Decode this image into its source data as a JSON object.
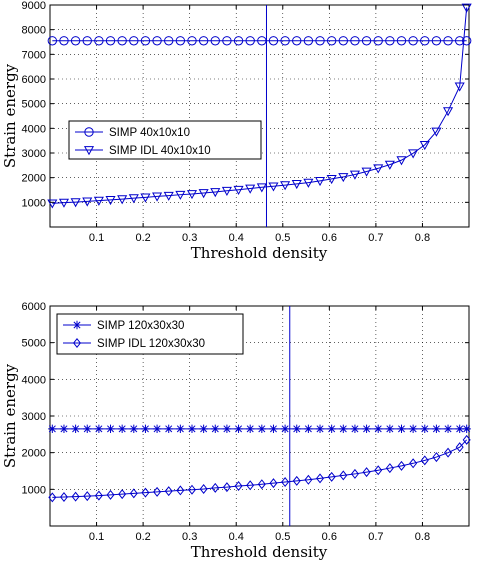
{
  "colors": {
    "series": "#0000cc",
    "grid": "#000000",
    "axes": "#000000"
  },
  "chart_data": [
    {
      "type": "line",
      "xlabel": "Threshold density",
      "ylabel": "Strain energy",
      "xlim": [
        0,
        0.9
      ],
      "ylim": [
        0,
        9000
      ],
      "xticks": [
        "0.1",
        "0.2",
        "0.3",
        "0.4",
        "0.5",
        "0.6",
        "0.7",
        "0.8"
      ],
      "yticks": [
        "1000",
        "2000",
        "3000",
        "4000",
        "5000",
        "6000",
        "7000",
        "8000",
        "9000"
      ],
      "grid": true,
      "legend_position": "middle-left",
      "vline_x": 0.465,
      "series": [
        {
          "name": "SIMP 40x10x10",
          "marker": "circle",
          "x": [
            0.005,
            0.03,
            0.055,
            0.08,
            0.105,
            0.13,
            0.155,
            0.18,
            0.205,
            0.23,
            0.255,
            0.28,
            0.305,
            0.33,
            0.355,
            0.38,
            0.405,
            0.43,
            0.455,
            0.48,
            0.505,
            0.53,
            0.555,
            0.58,
            0.605,
            0.63,
            0.655,
            0.68,
            0.705,
            0.73,
            0.755,
            0.78,
            0.805,
            0.83,
            0.855,
            0.88,
            0.895
          ],
          "values": [
            7550,
            7550,
            7550,
            7550,
            7550,
            7550,
            7550,
            7550,
            7550,
            7550,
            7550,
            7550,
            7550,
            7550,
            7550,
            7550,
            7550,
            7550,
            7550,
            7550,
            7550,
            7550,
            7550,
            7550,
            7550,
            7550,
            7550,
            7550,
            7550,
            7550,
            7550,
            7550,
            7550,
            7550,
            7550,
            7550,
            7550
          ]
        },
        {
          "name": "SIMP IDL 40x10x10",
          "marker": "triangle-down",
          "x": [
            0.005,
            0.03,
            0.055,
            0.08,
            0.105,
            0.13,
            0.155,
            0.18,
            0.205,
            0.23,
            0.255,
            0.28,
            0.305,
            0.33,
            0.355,
            0.38,
            0.405,
            0.43,
            0.455,
            0.48,
            0.505,
            0.53,
            0.555,
            0.58,
            0.605,
            0.63,
            0.655,
            0.68,
            0.705,
            0.73,
            0.755,
            0.78,
            0.805,
            0.83,
            0.855,
            0.88,
            0.895
          ],
          "values": [
            960,
            990,
            1010,
            1040,
            1070,
            1100,
            1130,
            1170,
            1200,
            1240,
            1270,
            1310,
            1340,
            1380,
            1420,
            1470,
            1510,
            1560,
            1610,
            1650,
            1700,
            1750,
            1800,
            1870,
            1950,
            2030,
            2130,
            2250,
            2380,
            2530,
            2710,
            2990,
            3330,
            3870,
            4700,
            5700,
            8900
          ]
        }
      ]
    },
    {
      "type": "line",
      "xlabel": "Threshold density",
      "ylabel": "Strain energy",
      "xlim": [
        0,
        0.9
      ],
      "ylim": [
        0,
        6000
      ],
      "xticks": [
        "0.1",
        "0.2",
        "0.3",
        "0.4",
        "0.5",
        "0.6",
        "0.7",
        "0.8"
      ],
      "yticks": [
        "1000",
        "2000",
        "3000",
        "4000",
        "5000",
        "6000"
      ],
      "grid": true,
      "legend_position": "top-left",
      "vline_x": 0.515,
      "series": [
        {
          "name": "SIMP 120x30x30",
          "marker": "asterisk",
          "x": [
            0.005,
            0.03,
            0.055,
            0.08,
            0.105,
            0.13,
            0.155,
            0.18,
            0.205,
            0.23,
            0.255,
            0.28,
            0.305,
            0.33,
            0.355,
            0.38,
            0.405,
            0.43,
            0.455,
            0.48,
            0.505,
            0.53,
            0.555,
            0.58,
            0.605,
            0.63,
            0.655,
            0.68,
            0.705,
            0.73,
            0.755,
            0.78,
            0.805,
            0.83,
            0.855,
            0.88,
            0.895
          ],
          "values": [
            2650,
            2650,
            2650,
            2650,
            2650,
            2650,
            2650,
            2650,
            2650,
            2650,
            2650,
            2650,
            2650,
            2650,
            2650,
            2650,
            2650,
            2650,
            2650,
            2650,
            2650,
            2650,
            2650,
            2650,
            2650,
            2650,
            2650,
            2650,
            2650,
            2650,
            2650,
            2650,
            2650,
            2650,
            2650,
            2650,
            2650
          ]
        },
        {
          "name": "SIMP IDL 120x30x30",
          "marker": "diamond",
          "x": [
            0.005,
            0.03,
            0.055,
            0.08,
            0.105,
            0.13,
            0.155,
            0.18,
            0.205,
            0.23,
            0.255,
            0.28,
            0.305,
            0.33,
            0.355,
            0.38,
            0.405,
            0.43,
            0.455,
            0.48,
            0.505,
            0.53,
            0.555,
            0.58,
            0.605,
            0.63,
            0.655,
            0.68,
            0.705,
            0.73,
            0.755,
            0.78,
            0.805,
            0.83,
            0.855,
            0.88,
            0.895
          ],
          "values": [
            780,
            790,
            800,
            815,
            830,
            850,
            870,
            890,
            910,
            930,
            950,
            970,
            990,
            1010,
            1040,
            1060,
            1090,
            1110,
            1140,
            1170,
            1200,
            1230,
            1260,
            1300,
            1340,
            1380,
            1420,
            1470,
            1520,
            1580,
            1640,
            1710,
            1790,
            1880,
            2000,
            2150,
            2350
          ]
        }
      ]
    }
  ]
}
